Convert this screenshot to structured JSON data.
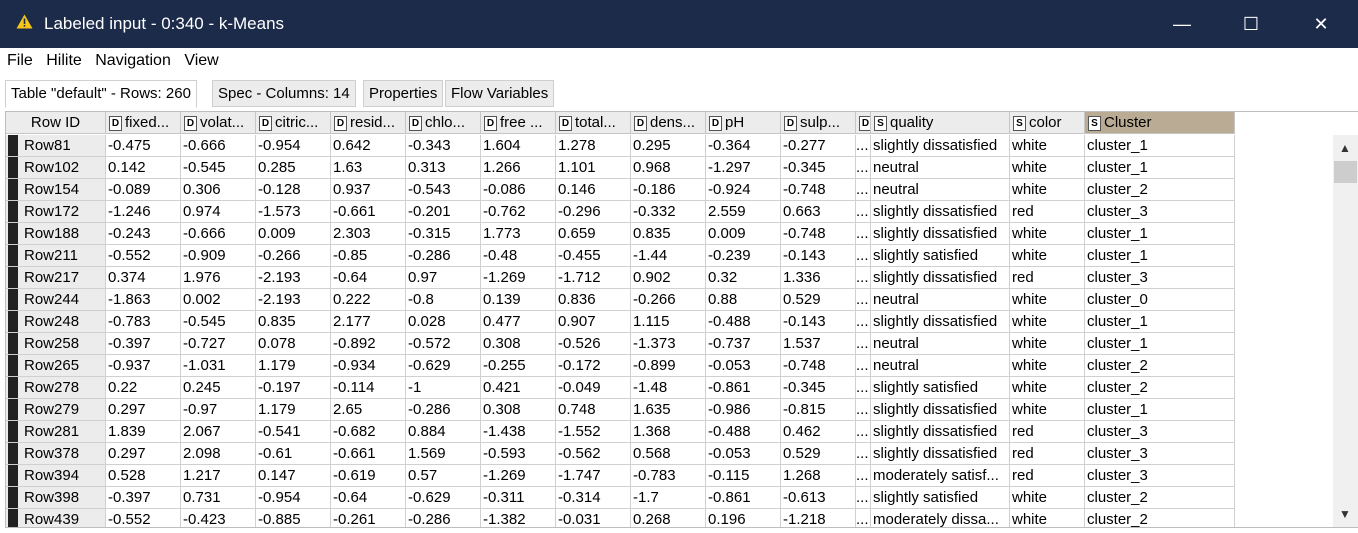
{
  "window": {
    "title": "Labeled input - 0:340 - k-Means",
    "minimize": "—",
    "maximize": "☐",
    "close": "✕",
    "warning_icon": "warning-triangle-icon",
    "warning_color": "#f5c518",
    "titlebar_color": "#1c2b4a"
  },
  "menu": [
    "File",
    "Hilite",
    "Navigation",
    "View"
  ],
  "tabs": [
    "Table \"default\" - Rows: 260",
    "Spec - Columns: 14",
    "Properties",
    "Flow Variables"
  ],
  "table": {
    "row_id_header": "Row ID",
    "columns": [
      {
        "type": "D",
        "label": "fixed..."
      },
      {
        "type": "D",
        "label": "volat..."
      },
      {
        "type": "D",
        "label": "citric..."
      },
      {
        "type": "D",
        "label": "resid..."
      },
      {
        "type": "D",
        "label": "chlo..."
      },
      {
        "type": "D",
        "label": "free ..."
      },
      {
        "type": "D",
        "label": "total..."
      },
      {
        "type": "D",
        "label": "dens..."
      },
      {
        "type": "D",
        "label": "pH"
      },
      {
        "type": "D",
        "label": "sulp..."
      },
      {
        "type": "D",
        "label": ""
      },
      {
        "type": "S",
        "label": "quality"
      },
      {
        "type": "S",
        "label": "color"
      },
      {
        "type": "S",
        "label": "Cluster"
      }
    ],
    "rows": [
      {
        "id": "Row81",
        "cells": [
          "-0.475",
          "-0.666",
          "-0.954",
          "0.642",
          "-0.343",
          "1.604",
          "1.278",
          "0.295",
          "-0.364",
          "-0.277",
          "...",
          "slightly dissatisfied",
          "white",
          "cluster_1"
        ]
      },
      {
        "id": "Row102",
        "cells": [
          "0.142",
          "-0.545",
          "0.285",
          "1.63",
          "0.313",
          "1.266",
          "1.101",
          "0.968",
          "-1.297",
          "-0.345",
          "...",
          "neutral",
          "white",
          "cluster_1"
        ]
      },
      {
        "id": "Row154",
        "cells": [
          "-0.089",
          "0.306",
          "-0.128",
          "0.937",
          "-0.543",
          "-0.086",
          "0.146",
          "-0.186",
          "-0.924",
          "-0.748",
          "...",
          "neutral",
          "white",
          "cluster_2"
        ]
      },
      {
        "id": "Row172",
        "cells": [
          "-1.246",
          "0.974",
          "-1.573",
          "-0.661",
          "-0.201",
          "-0.762",
          "-0.296",
          "-0.332",
          "2.559",
          "0.663",
          "...",
          "slightly dissatisfied",
          "red",
          "cluster_3"
        ]
      },
      {
        "id": "Row188",
        "cells": [
          "-0.243",
          "-0.666",
          "0.009",
          "2.303",
          "-0.315",
          "1.773",
          "0.659",
          "0.835",
          "0.009",
          "-0.748",
          "...",
          "slightly dissatisfied",
          "white",
          "cluster_1"
        ]
      },
      {
        "id": "Row211",
        "cells": [
          "-0.552",
          "-0.909",
          "-0.266",
          "-0.85",
          "-0.286",
          "-0.48",
          "-0.455",
          "-1.44",
          "-0.239",
          "-0.143",
          "...",
          "slightly satisfied",
          "white",
          "cluster_1"
        ]
      },
      {
        "id": "Row217",
        "cells": [
          "0.374",
          "1.976",
          "-2.193",
          "-0.64",
          "0.97",
          "-1.269",
          "-1.712",
          "0.902",
          "0.32",
          "1.336",
          "...",
          "slightly dissatisfied",
          "red",
          "cluster_3"
        ]
      },
      {
        "id": "Row244",
        "cells": [
          "-1.863",
          "0.002",
          "-2.193",
          "0.222",
          "-0.8",
          "0.139",
          "0.836",
          "-0.266",
          "0.88",
          "0.529",
          "...",
          "neutral",
          "white",
          "cluster_0"
        ]
      },
      {
        "id": "Row248",
        "cells": [
          "-0.783",
          "-0.545",
          "0.835",
          "2.177",
          "0.028",
          "0.477",
          "0.907",
          "1.115",
          "-0.488",
          "-0.143",
          "...",
          "slightly dissatisfied",
          "white",
          "cluster_1"
        ]
      },
      {
        "id": "Row258",
        "cells": [
          "-0.397",
          "-0.727",
          "0.078",
          "-0.892",
          "-0.572",
          "0.308",
          "-0.526",
          "-1.373",
          "-0.737",
          "1.537",
          "...",
          "neutral",
          "white",
          "cluster_1"
        ]
      },
      {
        "id": "Row265",
        "cells": [
          "-0.937",
          "-1.031",
          "1.179",
          "-0.934",
          "-0.629",
          "-0.255",
          "-0.172",
          "-0.899",
          "-0.053",
          "-0.748",
          "...",
          "neutral",
          "white",
          "cluster_2"
        ]
      },
      {
        "id": "Row278",
        "cells": [
          "0.22",
          "0.245",
          "-0.197",
          "-0.114",
          "-1",
          "0.421",
          "-0.049",
          "-1.48",
          "-0.861",
          "-0.345",
          "...",
          "slightly satisfied",
          "white",
          "cluster_2"
        ]
      },
      {
        "id": "Row279",
        "cells": [
          "0.297",
          "-0.97",
          "1.179",
          "2.65",
          "-0.286",
          "0.308",
          "0.748",
          "1.635",
          "-0.986",
          "-0.815",
          "...",
          "slightly dissatisfied",
          "white",
          "cluster_1"
        ]
      },
      {
        "id": "Row281",
        "cells": [
          "1.839",
          "2.067",
          "-0.541",
          "-0.682",
          "0.884",
          "-1.438",
          "-1.552",
          "1.368",
          "-0.488",
          "0.462",
          "...",
          "slightly dissatisfied",
          "red",
          "cluster_3"
        ]
      },
      {
        "id": "Row378",
        "cells": [
          "0.297",
          "2.098",
          "-0.61",
          "-0.661",
          "1.569",
          "-0.593",
          "-0.562",
          "0.568",
          "-0.053",
          "0.529",
          "...",
          "slightly dissatisfied",
          "red",
          "cluster_3"
        ]
      },
      {
        "id": "Row394",
        "cells": [
          "0.528",
          "1.217",
          "0.147",
          "-0.619",
          "0.57",
          "-1.269",
          "-1.747",
          "-0.783",
          "-0.115",
          "1.268",
          "...",
          "moderately satisf...",
          "red",
          "cluster_3"
        ]
      },
      {
        "id": "Row398",
        "cells": [
          "-0.397",
          "0.731",
          "-0.954",
          "-0.64",
          "-0.629",
          "-0.311",
          "-0.314",
          "-1.7",
          "-0.861",
          "-0.613",
          "...",
          "slightly satisfied",
          "white",
          "cluster_2"
        ]
      },
      {
        "id": "Row439",
        "cells": [
          "-0.552",
          "-0.423",
          "-0.885",
          "-0.261",
          "-0.286",
          "-1.382",
          "-0.031",
          "0.268",
          "0.196",
          "-1.218",
          "...",
          "moderately dissa...",
          "white",
          "cluster_2"
        ]
      }
    ]
  },
  "scrollbar": {
    "up_icon": "chevron-up-icon",
    "down_icon": "chevron-down-icon"
  }
}
